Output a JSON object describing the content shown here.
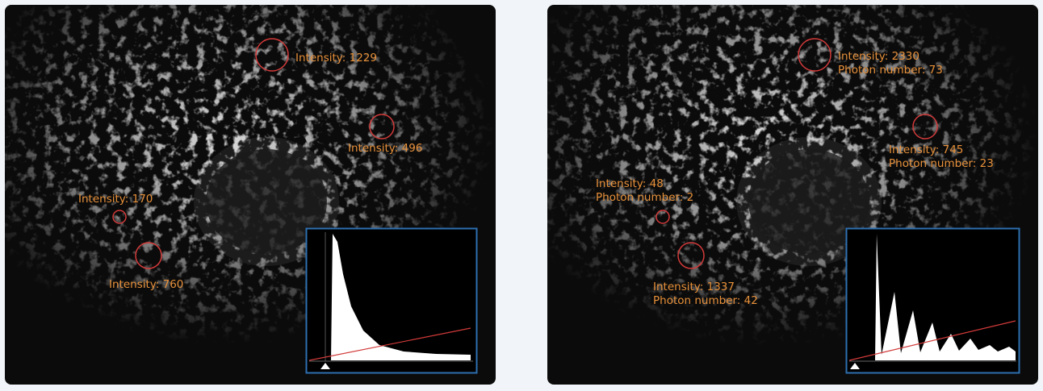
{
  "panels": [
    {
      "annotations": [
        {
          "lines": [
            "Intensity: 1229"
          ]
        },
        {
          "lines": [
            "Intensity: 496"
          ]
        },
        {
          "lines": [
            "Intensity: 170"
          ]
        },
        {
          "lines": [
            "Intensity: 760"
          ]
        }
      ]
    },
    {
      "annotations": [
        {
          "lines": [
            "Intensity: 2330",
            "Photon number: 73"
          ]
        },
        {
          "lines": [
            "Intensity: 745",
            "Photon number: 23"
          ]
        },
        {
          "lines": [
            "Intensity: 48",
            "Photon number: 2"
          ]
        },
        {
          "lines": [
            "Intensity: 1337",
            "Photon number: 42"
          ]
        }
      ]
    }
  ]
}
